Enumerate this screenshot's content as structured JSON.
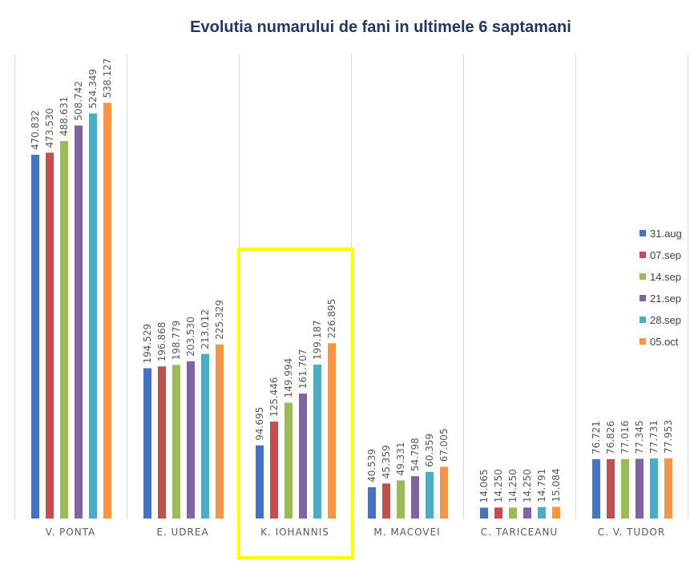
{
  "chart_data": {
    "type": "bar",
    "title": "Evolutia numarului de fani in ultimele 6 saptamani",
    "categories": [
      "V. PONTA",
      "E. UDREA",
      "K. IOHANNIS",
      "M. MACOVEI",
      "C. TARICEANU",
      "C. V. TUDOR"
    ],
    "series": [
      {
        "name": "31.aug",
        "color": "#4472c4",
        "values": [
          470832,
          194529,
          94695,
          40539,
          14065,
          76721
        ],
        "labels": [
          "470.832",
          "194.529",
          "94.695",
          "40.539",
          "14.065",
          "76.721"
        ]
      },
      {
        "name": "07.sep",
        "color": "#c0504d",
        "values": [
          473530,
          196868,
          125446,
          45359,
          14250,
          76826
        ],
        "labels": [
          "473.530",
          "196.868",
          "125.446",
          "45.359",
          "14.250",
          "76.826"
        ]
      },
      {
        "name": "14.sep",
        "color": "#9bbb59",
        "values": [
          488631,
          198779,
          149994,
          49331,
          14250,
          77016
        ],
        "labels": [
          "488.631",
          "198.779",
          "149.994",
          "49.331",
          "14.250",
          "77.016"
        ]
      },
      {
        "name": "21.sep",
        "color": "#8064a2",
        "values": [
          508742,
          203530,
          161707,
          54798,
          14250,
          77345
        ],
        "labels": [
          "508.742",
          "203.530",
          "161.707",
          "54.798",
          "14.250",
          "77.345"
        ]
      },
      {
        "name": "28.sep",
        "color": "#4bacc6",
        "values": [
          524349,
          213012,
          199187,
          60359,
          14791,
          77731
        ],
        "labels": [
          "524.349",
          "213.012",
          "199.187",
          "60.359",
          "14.791",
          "77.731"
        ]
      },
      {
        "name": "05.oct",
        "color": "#f79646",
        "values": [
          538127,
          225329,
          226895,
          67005,
          15084,
          77953
        ],
        "labels": [
          "538.127",
          "225.329",
          "226.895",
          "67.005",
          "15.084",
          "77.953"
        ]
      }
    ],
    "ylim": [
      0,
      600000
    ],
    "grid": "vertical category separators",
    "legend_position": "right",
    "highlighted_category": "K. IOHANNIS",
    "highlight_color": "#ffff00"
  }
}
